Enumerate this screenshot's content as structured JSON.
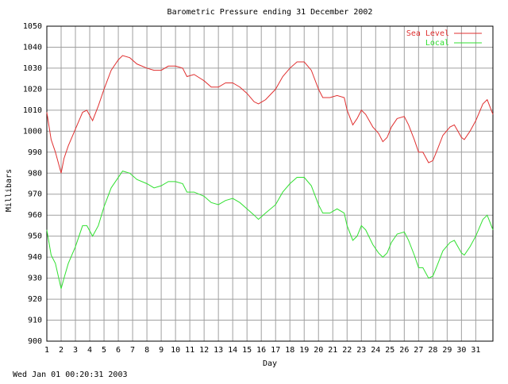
{
  "chart_data": {
    "type": "line",
    "title": "Barometric Pressure ending 31 December 2002",
    "x_label": "Day",
    "y_label": "Millibars",
    "footer": "Wed Jan 01 00:20:31 2003",
    "x": [
      1,
      1.3,
      1.6,
      2,
      2.2,
      2.5,
      3,
      3.5,
      3.8,
      4.2,
      4.6,
      5,
      5.5,
      6,
      6.3,
      6.8,
      7.3,
      8,
      8.5,
      9,
      9.5,
      10,
      10.5,
      10.8,
      11.3,
      12,
      12.5,
      13,
      13.5,
      14,
      14.5,
      15,
      15.5,
      15.8,
      16.3,
      17,
      17.5,
      18,
      18.5,
      19,
      19.5,
      20,
      20.3,
      20.8,
      21.3,
      21.8,
      22,
      22.4,
      22.7,
      23,
      23.3,
      23.8,
      24.2,
      24.5,
      24.8,
      25.1,
      25.5,
      26,
      26.3,
      26.7,
      27,
      27.3,
      27.7,
      28,
      28.3,
      28.7,
      29.2,
      29.5,
      30,
      30.2,
      30.6,
      31,
      31.5,
      31.8,
      32.2
    ],
    "series": [
      {
        "name": "Sea Level",
        "color": "#e03030",
        "values": [
          1009,
          996,
          990,
          980,
          987,
          993,
          1001,
          1009,
          1010,
          1005,
          1012,
          1020,
          1029,
          1034,
          1036,
          1035,
          1032,
          1030,
          1029,
          1029,
          1031,
          1031,
          1030,
          1026,
          1027,
          1024,
          1021,
          1021,
          1023,
          1023,
          1021,
          1018,
          1014,
          1013,
          1015,
          1020,
          1026,
          1030,
          1033,
          1033,
          1029,
          1020,
          1016,
          1016,
          1017,
          1016,
          1010,
          1003,
          1006,
          1010,
          1008,
          1002,
          999,
          995,
          997,
          1002,
          1006,
          1007,
          1003,
          996,
          990,
          990,
          985,
          986,
          991,
          998,
          1002,
          1003,
          997,
          996,
          1000,
          1005,
          1013,
          1015,
          1008
        ]
      },
      {
        "name": "Local",
        "color": "#30e030",
        "values": [
          953,
          941,
          937,
          925,
          930,
          937,
          945,
          955,
          955,
          950,
          955,
          964,
          973,
          978,
          981,
          980,
          977,
          975,
          973,
          974,
          976,
          976,
          975,
          971,
          971,
          969,
          966,
          965,
          967,
          968,
          966,
          963,
          960,
          958,
          961,
          965,
          971,
          975,
          978,
          978,
          974,
          965,
          961,
          961,
          963,
          961,
          955,
          948,
          950,
          955,
          953,
          946,
          942,
          940,
          942,
          947,
          951,
          952,
          948,
          941,
          935,
          935,
          930,
          931,
          936,
          943,
          947,
          948,
          942,
          941,
          945,
          950,
          958,
          960,
          953
        ]
      }
    ],
    "xlim": [
      1,
      32.2
    ],
    "xticks": [
      1,
      2,
      3,
      4,
      5,
      6,
      7,
      8,
      9,
      10,
      11,
      12,
      13,
      14,
      15,
      16,
      17,
      18,
      19,
      20,
      21,
      22,
      23,
      24,
      25,
      26,
      27,
      28,
      29,
      30,
      31
    ],
    "ylim": [
      900,
      1050
    ],
    "yticks": [
      900,
      910,
      920,
      930,
      940,
      950,
      960,
      970,
      980,
      990,
      1000,
      1010,
      1020,
      1030,
      1040,
      1050
    ],
    "grid": true,
    "legend": "top-right"
  }
}
